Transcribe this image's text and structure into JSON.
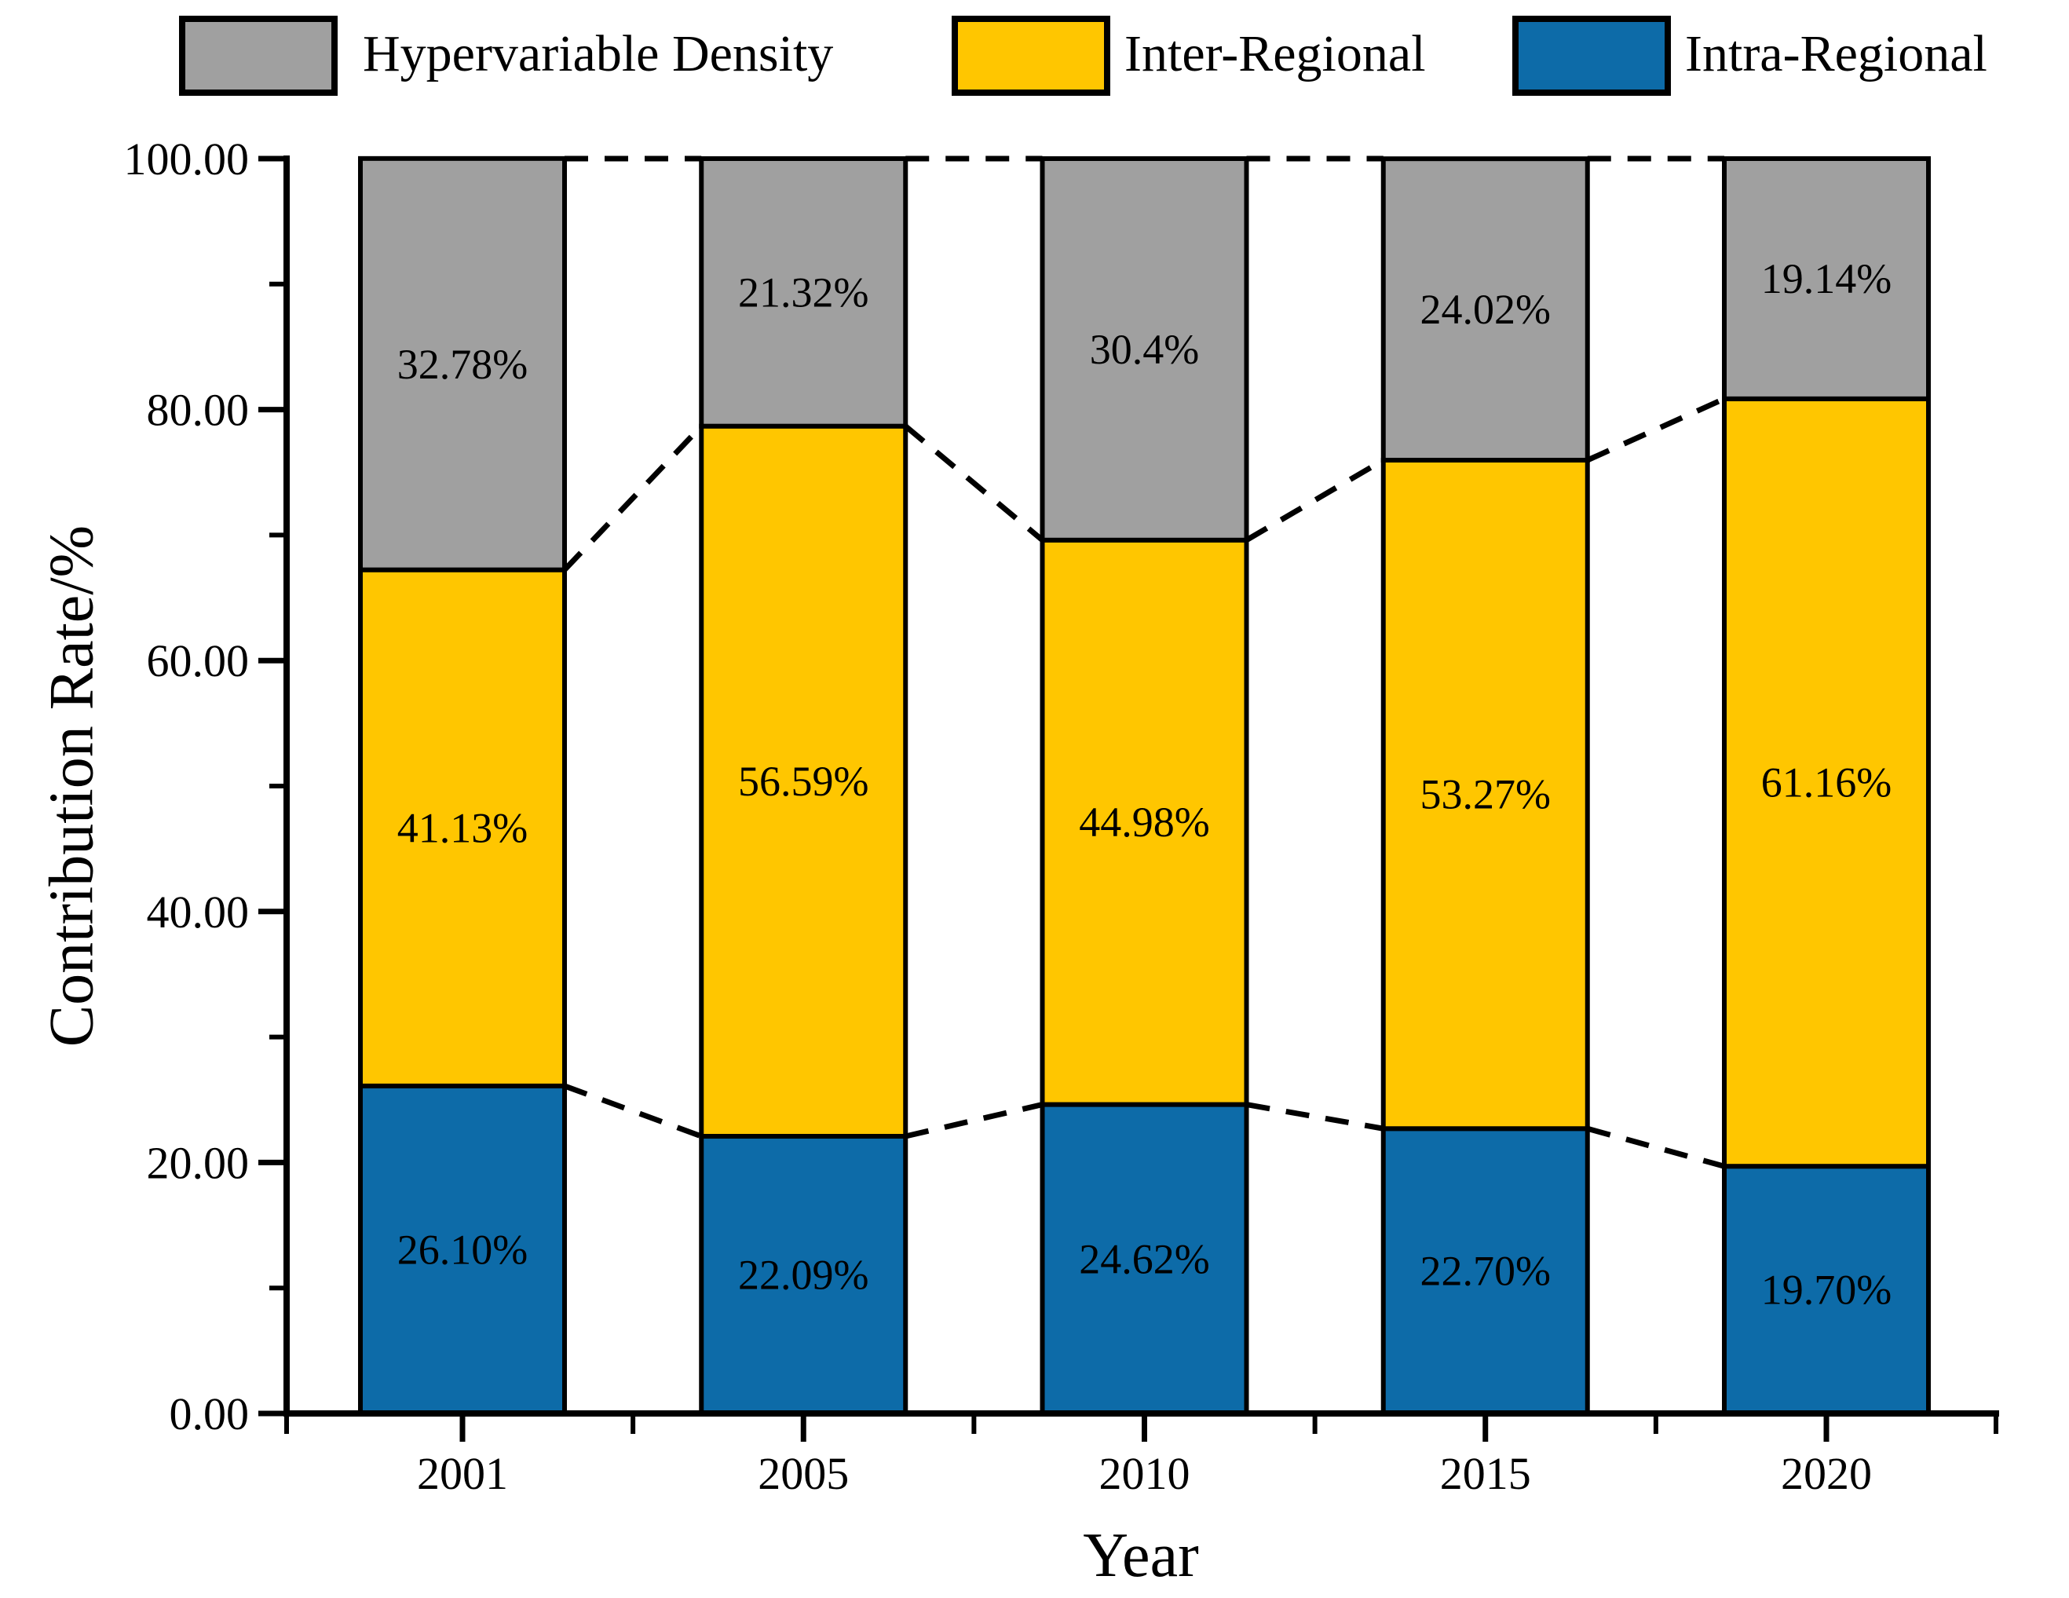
{
  "figure": {
    "background": "#FFFFFF"
  },
  "legend": {
    "items": [
      {
        "label": "Hypervariable Density",
        "color": "#A0A0A0"
      },
      {
        "label": "Inter-Regional",
        "color": "#FFC600"
      },
      {
        "label": "Intra-Regional",
        "color": "#0D6BA8"
      }
    ]
  },
  "axes": {
    "y": {
      "title": "Contribution Rate/%",
      "range": [
        0,
        100
      ],
      "major_values": [
        0,
        20,
        40,
        60,
        80,
        100
      ],
      "tick_labels": [
        "0.00",
        "20.00",
        "40.00",
        "60.00",
        "80.00",
        "100.00"
      ],
      "minor_values": [
        10,
        30,
        50,
        70,
        90
      ]
    },
    "x": {
      "title": "Year",
      "tick_labels": [
        "2001",
        "2005",
        "2010",
        "2015",
        "2020"
      ]
    }
  },
  "chart_data": {
    "type": "bar",
    "stacked": true,
    "title": "",
    "xlabel": "Year",
    "ylabel": "Contribution Rate/%",
    "ylim": [
      0,
      100
    ],
    "grid": false,
    "legend_position": "top",
    "categories": [
      "2001",
      "2005",
      "2010",
      "2015",
      "2020"
    ],
    "series": [
      {
        "name": "Intra-Regional",
        "color": "#0D6BA8",
        "values": [
          26.1,
          22.09,
          24.62,
          22.7,
          19.7
        ],
        "labels": [
          "26.10%",
          "22.09%",
          "24.62%",
          "22.70%",
          "19.70%"
        ]
      },
      {
        "name": "Inter-Regional",
        "color": "#FFC600",
        "values": [
          41.13,
          56.59,
          44.98,
          53.27,
          61.16
        ],
        "labels": [
          "41.13%",
          "56.59%",
          "44.98%",
          "53.27%",
          "61.16%"
        ]
      },
      {
        "name": "Hypervariable Density",
        "color": "#A0A0A0",
        "values": [
          32.78,
          21.32,
          30.4,
          24.02,
          19.14
        ],
        "labels": [
          "32.78%",
          "21.32%",
          "30.4%",
          "24.02%",
          "19.14%"
        ]
      }
    ],
    "annotations": "dashed lines connect segment boundaries (0%-line of gray, top of blue, and 100% top) between adjacent bars"
  }
}
